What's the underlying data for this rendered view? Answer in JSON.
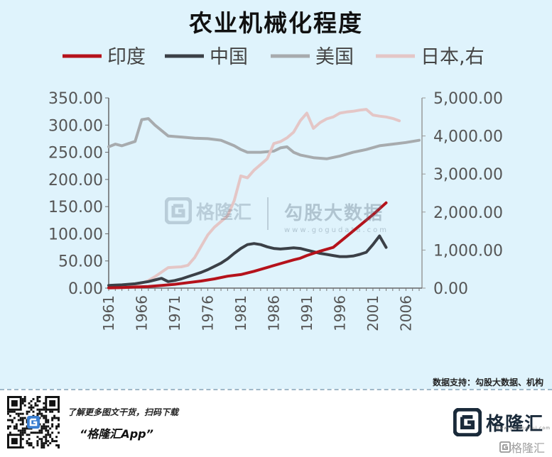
{
  "chart_data": {
    "type": "line",
    "title": "农业机械化程度",
    "x": [
      1961,
      1962,
      1963,
      1964,
      1965,
      1966,
      1967,
      1968,
      1969,
      1970,
      1971,
      1972,
      1973,
      1974,
      1975,
      1976,
      1977,
      1978,
      1979,
      1980,
      1981,
      1982,
      1983,
      1984,
      1985,
      1986,
      1987,
      1988,
      1989,
      1990,
      1991,
      1992,
      1993,
      1994,
      1995,
      1996,
      1997,
      1998,
      1999,
      2000,
      2001,
      2002,
      2003,
      2004,
      2005,
      2006,
      2007
    ],
    "xticks": [
      "1961",
      "1966",
      "1971",
      "1976",
      "1981",
      "1986",
      "1991",
      "1996",
      "2001",
      "2006"
    ],
    "xlim": [
      1961,
      2008
    ],
    "yleft": {
      "lim": [
        0,
        350
      ],
      "ticks": [
        "350.00",
        "300.00",
        "250.00",
        "200.00",
        "150.00",
        "100.00",
        "50.00",
        "0.00"
      ],
      "tick_values": [
        350,
        300,
        250,
        200,
        150,
        100,
        50,
        0
      ]
    },
    "yright": {
      "lim": [
        0,
        5000
      ],
      "ticks": [
        "5,000.00",
        "4,000.00",
        "3,000.00",
        "2,000.00",
        "1,000.00",
        "0.00"
      ],
      "tick_values": [
        5000,
        4000,
        3000,
        2000,
        1000,
        0
      ]
    },
    "series": [
      {
        "name": "印度",
        "color": "#b5121b",
        "axis": "left",
        "width": 4,
        "x": [
          1961,
          1963,
          1965,
          1967,
          1969,
          1971,
          1973,
          1975,
          1977,
          1979,
          1981,
          1983,
          1985,
          1987,
          1989,
          1990,
          1991,
          1993,
          1995,
          1997,
          1999,
          2001,
          2003
        ],
        "values": [
          0.5,
          1,
          2,
          3,
          5,
          7,
          10,
          13,
          17,
          22,
          25,
          31,
          38,
          45,
          52,
          55,
          60,
          68,
          75,
          95,
          115,
          135,
          157
        ]
      },
      {
        "name": "中国",
        "color": "#3b4047",
        "axis": "left",
        "width": 4,
        "x": [
          1961,
          1962,
          1963,
          1964,
          1965,
          1966,
          1967,
          1968,
          1969,
          1970,
          1971,
          1972,
          1973,
          1974,
          1975,
          1976,
          1977,
          1978,
          1979,
          1980,
          1981,
          1982,
          1983,
          1984,
          1985,
          1986,
          1987,
          1988,
          1989,
          1990,
          1991,
          1992,
          1993,
          1994,
          1995,
          1996,
          1997,
          1998,
          1999,
          2000,
          2001,
          2002,
          2003
        ],
        "values": [
          5,
          5.5,
          6,
          7,
          8,
          10,
          12,
          15,
          18,
          12,
          14,
          17,
          21,
          25,
          29,
          34,
          40,
          46,
          54,
          64,
          73,
          80,
          82,
          80,
          76,
          73,
          72,
          73,
          74,
          73,
          70,
          67,
          64,
          62,
          60,
          58,
          58,
          59,
          62,
          66,
          80,
          96,
          75
        ]
      },
      {
        "name": "美国",
        "color": "#a7abae",
        "axis": "left",
        "width": 4,
        "x": [
          1961,
          1962,
          1963,
          1964,
          1965,
          1966,
          1967,
          1968,
          1969,
          1970,
          1972,
          1974,
          1976,
          1978,
          1980,
          1981,
          1982,
          1984,
          1986,
          1987,
          1988,
          1989,
          1990,
          1992,
          1994,
          1996,
          1998,
          2000,
          2002,
          2004,
          2006,
          2008
        ],
        "values": [
          260,
          265,
          262,
          266,
          270,
          310,
          312,
          300,
          290,
          280,
          278,
          276,
          275,
          272,
          262,
          255,
          250,
          250,
          252,
          258,
          260,
          250,
          245,
          240,
          238,
          243,
          250,
          255,
          262,
          265,
          268,
          272
        ]
      },
      {
        "name": "日本,右",
        "color": "#e4c6c6",
        "axis": "right",
        "width": 4,
        "x": [
          1961,
          1962,
          1963,
          1964,
          1965,
          1966,
          1967,
          1968,
          1969,
          1970,
          1971,
          1972,
          1973,
          1974,
          1975,
          1976,
          1977,
          1978,
          1979,
          1980,
          1981,
          1982,
          1983,
          1984,
          1985,
          1986,
          1987,
          1988,
          1989,
          1990,
          1991,
          1992,
          1993,
          1994,
          1995,
          1996,
          1997,
          1998,
          1999,
          2000,
          2001,
          2002,
          2003,
          2004,
          2005
        ],
        "values": [
          0,
          10,
          20,
          40,
          80,
          130,
          200,
          300,
          420,
          540,
          550,
          560,
          600,
          800,
          1100,
          1400,
          1600,
          1750,
          1900,
          2300,
          2950,
          2900,
          3100,
          3250,
          3400,
          3800,
          3850,
          3950,
          4100,
          4400,
          4600,
          4200,
          4350,
          4450,
          4500,
          4600,
          4630,
          4650,
          4680,
          4700,
          4550,
          4520,
          4500,
          4460,
          4400
        ]
      }
    ]
  },
  "watermark": {
    "brand": "格隆汇",
    "gogudata_cn": "勾股大数据",
    "gogudata_url": "www.gogudata.com"
  },
  "source_note": "数据支持：勾股大数据、机构",
  "footer": {
    "caption": "了解更多图文干货，扫码下载",
    "app_name": "“格隆汇App”",
    "logo_text": "格隆汇",
    "logo_sub": "www.gelonghui.com",
    "corner_text": "格隆汇"
  }
}
